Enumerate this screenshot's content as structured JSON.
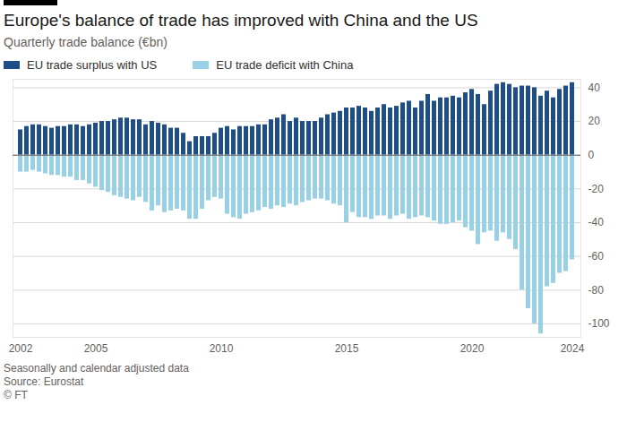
{
  "chart_data": {
    "type": "bar",
    "title": "Europe's balance of trade has improved with China and the US",
    "subtitle": "Quarterly trade balance (€bn)",
    "caption": [
      "Seasonally and calendar adjusted data",
      "Source: Eurostat",
      "© FT"
    ],
    "legend": "top-left",
    "grid": true,
    "categories": [
      "2002",
      null,
      null,
      null,
      null,
      null,
      null,
      null,
      null,
      null,
      null,
      null,
      "2005",
      null,
      null,
      null,
      null,
      null,
      null,
      null,
      null,
      null,
      null,
      null,
      null,
      null,
      null,
      null,
      null,
      null,
      null,
      null,
      "2010",
      null,
      null,
      null,
      null,
      null,
      null,
      null,
      null,
      null,
      null,
      null,
      null,
      null,
      null,
      null,
      null,
      null,
      null,
      null,
      "2015",
      null,
      null,
      null,
      null,
      null,
      null,
      null,
      null,
      null,
      null,
      null,
      null,
      null,
      null,
      null,
      null,
      null,
      null,
      null,
      "2020",
      null,
      null,
      null,
      null,
      null,
      null,
      null,
      null,
      null,
      null,
      null,
      null,
      null,
      null,
      null,
      "2024"
    ],
    "series": [
      {
        "name": "EU trade surplus with US",
        "color": "#1f4e86",
        "values": [
          15,
          17,
          18,
          18,
          17,
          16,
          17,
          17,
          18,
          18,
          17,
          18,
          19,
          20,
          20,
          21,
          22,
          22,
          21,
          21,
          18,
          20,
          19,
          18,
          16,
          16,
          13,
          8,
          11,
          11,
          11,
          13,
          16,
          17,
          15,
          17,
          17,
          17,
          18,
          18,
          21,
          22,
          24,
          20,
          22,
          20,
          20,
          20,
          22,
          24,
          25,
          26,
          28,
          28,
          29,
          28,
          26,
          28,
          30,
          28,
          29,
          31,
          32,
          28,
          32,
          36,
          32,
          34,
          34,
          35,
          34,
          37,
          39,
          36,
          30,
          38,
          42,
          43,
          42,
          40,
          41,
          41,
          40,
          35,
          38,
          34,
          39,
          41,
          43
        ]
      },
      {
        "name": "EU trade deficit with China",
        "color": "#98d0e6",
        "values": [
          -10,
          -10,
          -9,
          -10,
          -11,
          -12,
          -12,
          -13,
          -13,
          -15,
          -15,
          -17,
          -19,
          -21,
          -22,
          -24,
          -25,
          -26,
          -27,
          -25,
          -28,
          -33,
          -30,
          -34,
          -33,
          -32,
          -33,
          -38,
          -38,
          -32,
          -27,
          -25,
          -26,
          -35,
          -37,
          -38,
          -35,
          -34,
          -33,
          -31,
          -32,
          -30,
          -31,
          -29,
          -30,
          -28,
          -27,
          -26,
          -26,
          -27,
          -29,
          -30,
          -40,
          -34,
          -37,
          -37,
          -38,
          -36,
          -36,
          -38,
          -36,
          -35,
          -38,
          -37,
          -36,
          -37,
          -39,
          -41,
          -41,
          -40,
          -39,
          -43,
          -45,
          -53,
          -46,
          -45,
          -51,
          -46,
          -50,
          -56,
          -80,
          -91,
          -100,
          -106,
          -78,
          -76,
          -70,
          -69,
          -62
        ]
      }
    ],
    "ylim": [
      -108,
      45
    ],
    "yticks": [
      -100,
      -80,
      -60,
      -40,
      -20,
      0,
      20,
      40
    ]
  }
}
